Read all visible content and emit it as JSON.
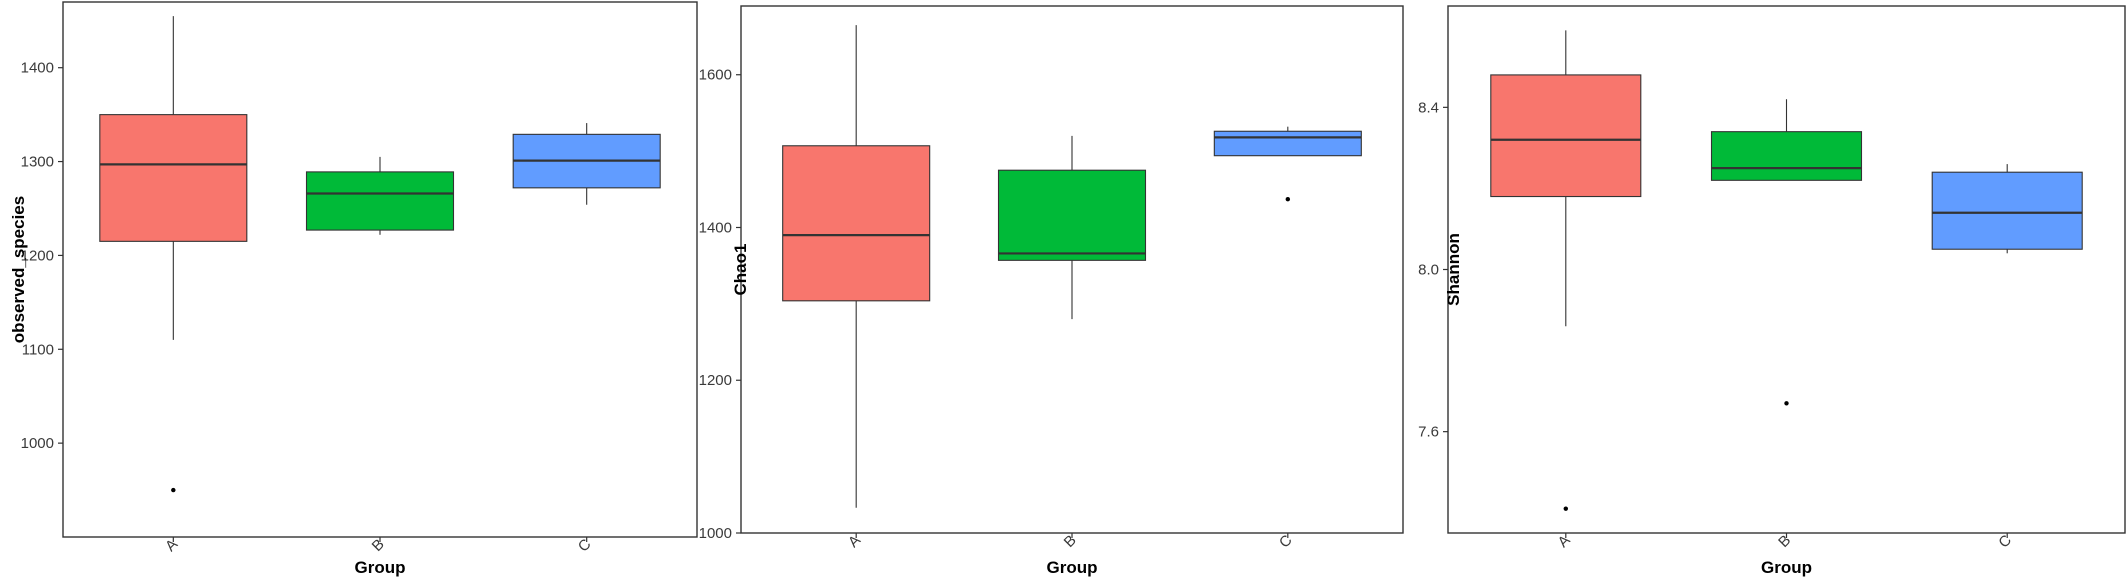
{
  "colors": {
    "A": "#F8766D",
    "B": "#00BA38",
    "C": "#619CFF",
    "median": "#333333",
    "outline": "#333333"
  },
  "chart_data": [
    {
      "type": "boxplot",
      "xlabel": "Group",
      "ylabel": "observed_species",
      "categories": [
        "A",
        "B",
        "C"
      ],
      "ylim": [
        900,
        1470
      ],
      "yticks": [
        1000,
        1100,
        1200,
        1300,
        1400
      ],
      "grid": false,
      "boxes": [
        {
          "group": "A",
          "whisker_low": 1110,
          "q1": 1215,
          "median": 1297,
          "q3": 1350,
          "whisker_high": 1455,
          "outliers": [
            950
          ]
        },
        {
          "group": "B",
          "whisker_low": 1222,
          "q1": 1227,
          "median": 1266,
          "q3": 1289,
          "whisker_high": 1305,
          "outliers": []
        },
        {
          "group": "C",
          "whisker_low": 1254,
          "q1": 1272,
          "median": 1301,
          "q3": 1329,
          "whisker_high": 1341,
          "outliers": []
        }
      ]
    },
    {
      "type": "boxplot",
      "xlabel": "Group",
      "ylabel": "Chao1",
      "categories": [
        "A",
        "B",
        "C"
      ],
      "ylim": [
        1000,
        1690
      ],
      "yticks": [
        1000,
        1200,
        1400,
        1600
      ],
      "grid": false,
      "boxes": [
        {
          "group": "A",
          "whisker_low": 1033,
          "q1": 1304,
          "median": 1390,
          "q3": 1507,
          "whisker_high": 1665,
          "outliers": []
        },
        {
          "group": "B",
          "whisker_low": 1280,
          "q1": 1357,
          "median": 1366,
          "q3": 1475,
          "whisker_high": 1520,
          "outliers": []
        },
        {
          "group": "C",
          "whisker_low": 1494,
          "q1": 1494,
          "median": 1518,
          "q3": 1526,
          "whisker_high": 1532,
          "outliers": [
            1437
          ]
        }
      ]
    },
    {
      "type": "boxplot",
      "xlabel": "Group",
      "ylabel": "Shannon",
      "categories": [
        "A",
        "B",
        "C"
      ],
      "ylim": [
        7.35,
        8.65
      ],
      "yticks": [
        7.6,
        8.0,
        8.4
      ],
      "ytick_labels": [
        "7.6",
        "8.0",
        "8.4"
      ],
      "grid": false,
      "boxes": [
        {
          "group": "A",
          "whisker_low": 7.86,
          "q1": 8.18,
          "median": 8.32,
          "q3": 8.48,
          "whisker_high": 8.59,
          "outliers": [
            7.41
          ]
        },
        {
          "group": "B",
          "whisker_low": 8.22,
          "q1": 8.22,
          "median": 8.25,
          "q3": 8.34,
          "whisker_high": 8.42,
          "outliers": [
            7.67
          ]
        },
        {
          "group": "C",
          "whisker_low": 8.04,
          "q1": 8.05,
          "median": 8.14,
          "q3": 8.24,
          "whisker_high": 8.26,
          "outliers": []
        }
      ]
    }
  ]
}
